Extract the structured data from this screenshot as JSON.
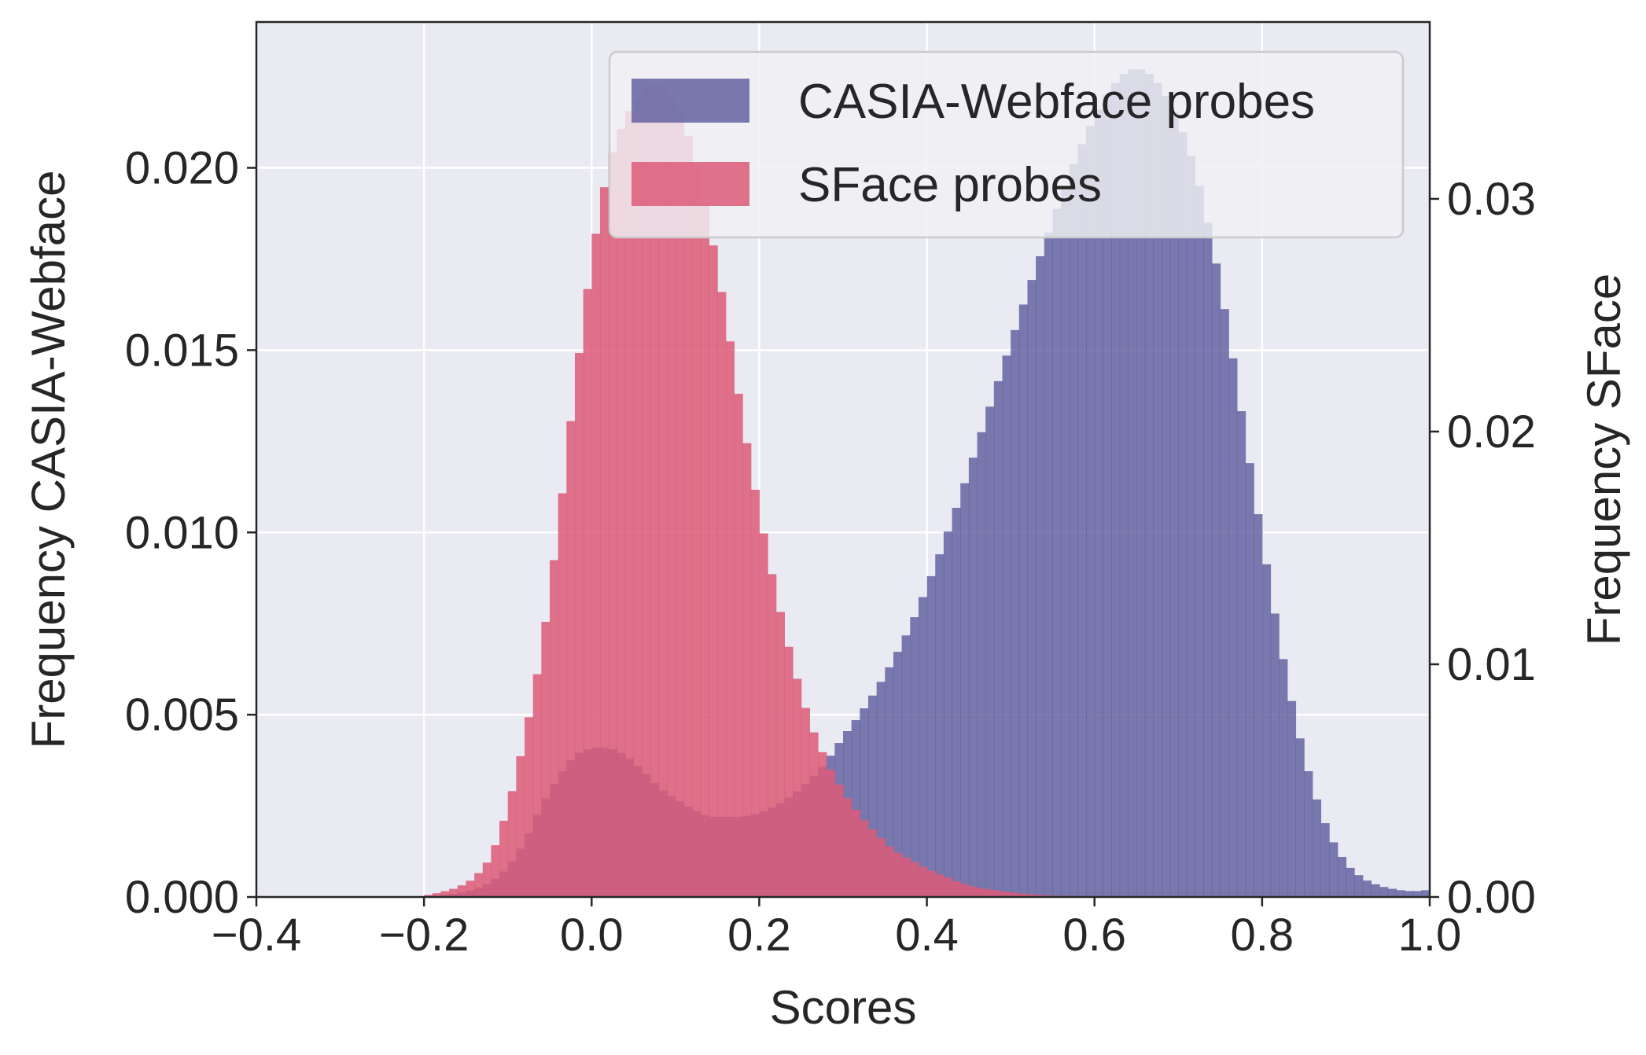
{
  "chart_data": {
    "type": "histogram",
    "xlabel": "Scores",
    "ylabel_left": "Frequency CASIA-Webface",
    "ylabel_right": "Frequency SFace",
    "xlim": [
      -0.4,
      1.0
    ],
    "ylim_left": [
      0,
      0.024
    ],
    "ylim_right": [
      0,
      0.0376
    ],
    "x_ticks": [
      "−0.4",
      "−0.2",
      "0.0",
      "0.2",
      "0.4",
      "0.6",
      "0.8",
      "1.0"
    ],
    "x_tick_values": [
      -0.4,
      -0.2,
      0.0,
      0.2,
      0.4,
      0.6,
      0.8,
      1.0
    ],
    "y_left_ticks": [
      "0.000",
      "0.005",
      "0.010",
      "0.015",
      "0.020"
    ],
    "y_left_tick_values": [
      0,
      0.005,
      0.01,
      0.015,
      0.02
    ],
    "y_right_ticks": [
      "0.00",
      "0.01",
      "0.02",
      "0.03"
    ],
    "y_right_tick_values": [
      0,
      0.01,
      0.02,
      0.03
    ],
    "grid": true,
    "legend_position": "top-right",
    "colors": {
      "background": "#eaeaf2",
      "grid": "#ffffff",
      "casia": "#5b5b9e",
      "sface": "#dc5a78",
      "legend_bg": "#f0f0f4",
      "legend_border": "#cccccc"
    },
    "series": [
      {
        "name": "CASIA-Webface probes",
        "axis": "left",
        "color": "#5b5b9e",
        "opacity": 0.8,
        "points": [
          [
            -0.2,
            2e-05
          ],
          [
            -0.18,
            5e-05
          ],
          [
            -0.16,
            0.0001
          ],
          [
            -0.14,
            0.0002
          ],
          [
            -0.12,
            0.0004
          ],
          [
            -0.1,
            0.0008
          ],
          [
            -0.08,
            0.0015
          ],
          [
            -0.06,
            0.0025
          ],
          [
            -0.04,
            0.0033
          ],
          [
            -0.02,
            0.0039
          ],
          [
            0.0,
            0.0041
          ],
          [
            0.02,
            0.0041
          ],
          [
            0.04,
            0.0039
          ],
          [
            0.06,
            0.0035
          ],
          [
            0.08,
            0.003
          ],
          [
            0.1,
            0.0027
          ],
          [
            0.12,
            0.0024
          ],
          [
            0.14,
            0.0022
          ],
          [
            0.16,
            0.0022
          ],
          [
            0.18,
            0.0022
          ],
          [
            0.2,
            0.0023
          ],
          [
            0.22,
            0.0025
          ],
          [
            0.24,
            0.0028
          ],
          [
            0.26,
            0.0032
          ],
          [
            0.28,
            0.0037
          ],
          [
            0.3,
            0.0044
          ],
          [
            0.32,
            0.005
          ],
          [
            0.34,
            0.0057
          ],
          [
            0.36,
            0.0065
          ],
          [
            0.38,
            0.0074
          ],
          [
            0.4,
            0.0085
          ],
          [
            0.42,
            0.0097
          ],
          [
            0.44,
            0.011
          ],
          [
            0.46,
            0.0124
          ],
          [
            0.48,
            0.0138
          ],
          [
            0.5,
            0.0152
          ],
          [
            0.52,
            0.0166
          ],
          [
            0.54,
            0.0179
          ],
          [
            0.56,
            0.0192
          ],
          [
            0.58,
            0.0204
          ],
          [
            0.6,
            0.0214
          ],
          [
            0.62,
            0.0222
          ],
          [
            0.64,
            0.0227
          ],
          [
            0.66,
            0.0227
          ],
          [
            0.68,
            0.0222
          ],
          [
            0.7,
            0.0213
          ],
          [
            0.72,
            0.02
          ],
          [
            0.74,
            0.018
          ],
          [
            0.76,
            0.0155
          ],
          [
            0.78,
            0.0126
          ],
          [
            0.8,
            0.0098
          ],
          [
            0.82,
            0.0071
          ],
          [
            0.84,
            0.0048
          ],
          [
            0.86,
            0.003
          ],
          [
            0.88,
            0.0017
          ],
          [
            0.9,
            0.0009
          ],
          [
            0.92,
            0.0005
          ],
          [
            0.94,
            0.0003
          ],
          [
            0.96,
            0.0002
          ],
          [
            0.98,
            0.00015
          ],
          [
            1.0,
            0.0002
          ]
        ]
      },
      {
        "name": "SFace probes",
        "axis": "right",
        "color": "#dc5a78",
        "opacity": 0.85,
        "points": [
          [
            -0.2,
            5e-05
          ],
          [
            -0.18,
            0.0002
          ],
          [
            -0.16,
            0.0004
          ],
          [
            -0.14,
            0.0008
          ],
          [
            -0.12,
            0.0017
          ],
          [
            -0.1,
            0.0038
          ],
          [
            -0.08,
            0.0068
          ],
          [
            -0.06,
            0.0105
          ],
          [
            -0.04,
            0.0158
          ],
          [
            -0.02,
            0.022
          ],
          [
            0.0,
            0.0275
          ],
          [
            0.02,
            0.0315
          ],
          [
            0.04,
            0.0335
          ],
          [
            0.06,
            0.0346
          ],
          [
            0.08,
            0.035
          ],
          [
            0.1,
            0.0342
          ],
          [
            0.12,
            0.0322
          ],
          [
            0.14,
            0.029
          ],
          [
            0.16,
            0.025
          ],
          [
            0.18,
            0.0205
          ],
          [
            0.2,
            0.0165
          ],
          [
            0.22,
            0.013
          ],
          [
            0.24,
            0.01
          ],
          [
            0.26,
            0.0075
          ],
          [
            0.28,
            0.0058
          ],
          [
            0.3,
            0.0045
          ],
          [
            0.32,
            0.0035
          ],
          [
            0.34,
            0.0027
          ],
          [
            0.36,
            0.002
          ],
          [
            0.38,
            0.0016
          ],
          [
            0.4,
            0.0012
          ],
          [
            0.42,
            0.0009
          ],
          [
            0.44,
            0.0006
          ],
          [
            0.46,
            0.0004
          ],
          [
            0.48,
            0.0003
          ],
          [
            0.5,
            0.0002
          ],
          [
            0.52,
            0.00012
          ],
          [
            0.54,
            8e-05
          ],
          [
            0.56,
            5e-05
          ],
          [
            0.58,
            3e-05
          ]
        ]
      }
    ]
  }
}
